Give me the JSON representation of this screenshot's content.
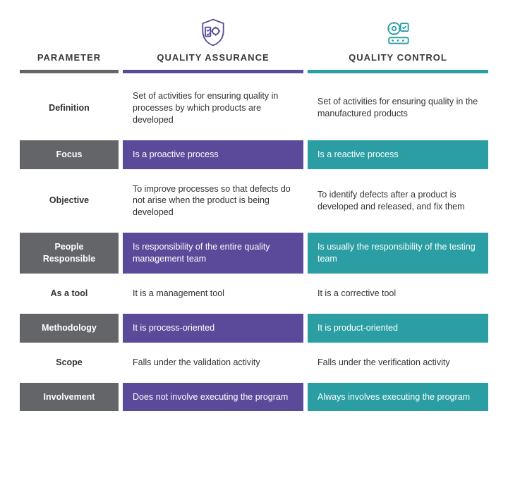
{
  "colors": {
    "parameter": "#636568",
    "qa": "#5b4a9a",
    "qc": "#2a9ea3",
    "background": "#ffffff",
    "text": "#3a3a3a"
  },
  "headers": {
    "parameter": "PARAMETER",
    "qa": "QUALITY ASSURANCE",
    "qc": "QUALITY CONTROL"
  },
  "rows": [
    {
      "style": "plain",
      "parameter": "Definition",
      "qa": "Set of activities for ensuring quality in processes by which products are developed",
      "qc": "Set of activities for ensuring quality in the manufactured products"
    },
    {
      "style": "filled",
      "parameter": "Focus",
      "qa": "Is a proactive process",
      "qc": "Is a reactive process"
    },
    {
      "style": "plain",
      "parameter": "Objective",
      "qa": "To improve processes so that defects do not arise when the product is being developed",
      "qc": "To identify defects after a product is developed and released, and fix them"
    },
    {
      "style": "filled",
      "parameter": "People Responsible",
      "qa": "Is responsibility of the entire quality management team",
      "qc": "Is usually the responsibility of the testing team"
    },
    {
      "style": "plain",
      "parameter": "As a tool",
      "qa": "It is a management tool",
      "qc": "It is a corrective tool"
    },
    {
      "style": "filled",
      "parameter": "Methodology",
      "qa": "It is process-oriented",
      "qc": "It is product-oriented"
    },
    {
      "style": "plain",
      "parameter": "Scope",
      "qa": "Falls under the validation activity",
      "qc": "Falls under the verification activity"
    },
    {
      "style": "filled",
      "parameter": "Involvement",
      "qa": "Does not involve executing the program",
      "qc": "Always involves executing the program"
    }
  ]
}
